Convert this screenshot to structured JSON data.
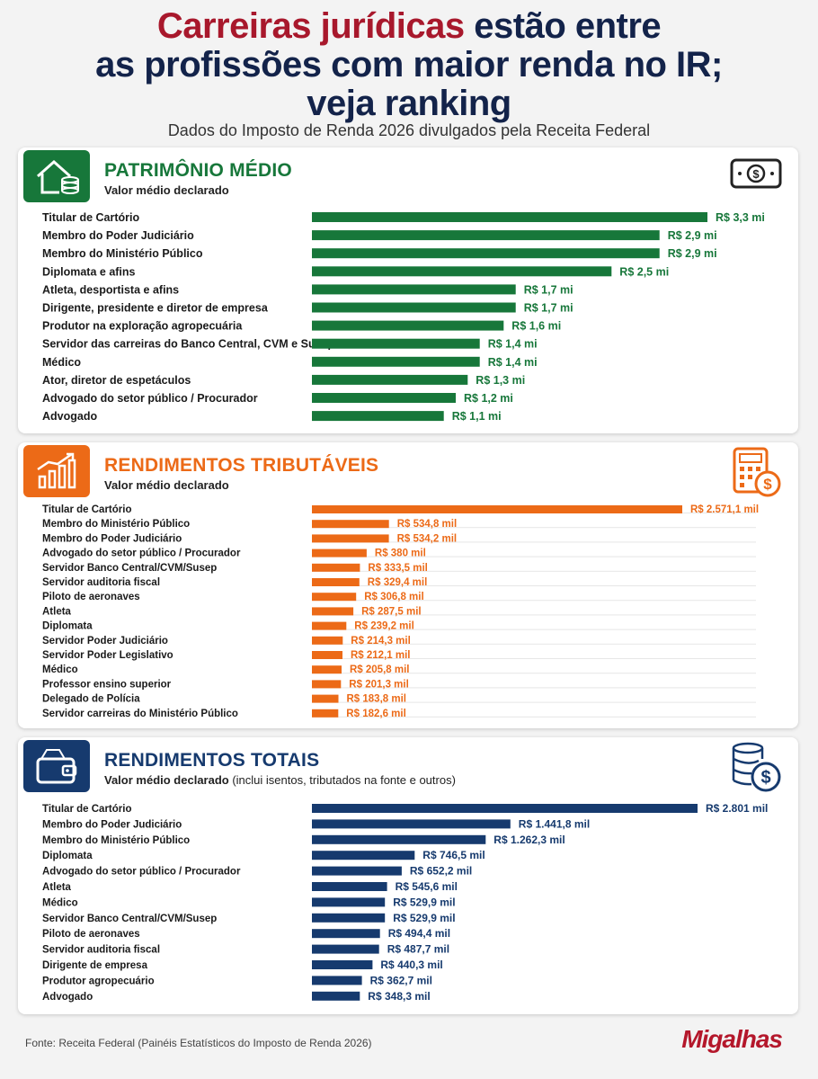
{
  "header": {
    "title_accent": "Carreiras jurídicas",
    "title_rest_1": " estão entre",
    "title_line2": "as profissões com maior renda no IR;",
    "title_line3": "veja ranking",
    "subtitle": "Dados do Imposto de Renda 2026 divulgados pela Receita Federal"
  },
  "colors": {
    "patrimonio": "#17773a",
    "tributaveis": "#ec6a17",
    "totais": "#163a6e",
    "accent_red": "#a8182c"
  },
  "panels": {
    "patrimonio": {
      "title": "PATRIMÔNIO MÉDIO",
      "subtitle": "Valor médio declarado",
      "icon": "house-coins-icon",
      "side_icon": "banknote-icon"
    },
    "tributaveis": {
      "title": "RENDIMENTOS TRIBUTÁVEIS",
      "subtitle": "Valor médio declarado",
      "icon": "growth-chart-icon",
      "side_icon": "calculator-icon"
    },
    "totais": {
      "title": "RENDIMENTOS TOTAIS",
      "subtitle": "Valor médio declarado",
      "subtitle_note": " (inclui isentos, tributados na fonte e outros)",
      "icon": "wallet-icon",
      "side_icon": "coin-stack-icon"
    }
  },
  "chart_data": [
    {
      "type": "bar",
      "orientation": "horizontal",
      "title": "PATRIMÔNIO MÉDIO",
      "unit": "R$ milhões",
      "categories": [
        "Titular de Cartório",
        "Membro do Poder Judiciário",
        "Membro do Ministério Público",
        "Diplomata e afins",
        "Atleta, desportista e afins",
        "Dirigente, presidente e diretor de empresa",
        "Produtor na exploração agropecuária",
        "Servidor das carreiras do Banco Central, CVM e Susep",
        "Médico",
        "Ator, diretor de espetáculos",
        "Advogado do setor público / Procurador",
        "Advogado"
      ],
      "values": [
        3.3,
        2.9,
        2.9,
        2.5,
        1.7,
        1.7,
        1.6,
        1.4,
        1.4,
        1.3,
        1.2,
        1.1
      ],
      "labels": [
        "R$ 3,3 mi",
        "R$ 2,9 mi",
        "R$ 2,9 mi",
        "R$ 2,5 mi",
        "R$ 1,7 mi",
        "R$ 1,7 mi",
        "R$ 1,6 mi",
        "R$ 1,4 mi",
        "R$ 1,4 mi",
        "R$ 1,3 mi",
        "R$ 1,2 mi",
        "R$ 1,1 mi"
      ],
      "xlim": [
        0,
        3.3
      ]
    },
    {
      "type": "bar",
      "orientation": "horizontal",
      "title": "RENDIMENTOS TRIBUTÁVEIS",
      "unit": "R$ mil",
      "categories": [
        "Titular de Cartório",
        "Membro do Ministério Público",
        "Membro do Poder Judiciário",
        "Advogado do setor público / Procurador",
        "Servidor Banco Central/CVM/Susep",
        "Servidor auditoria fiscal",
        "Piloto de aeronaves",
        "Atleta",
        "Diplomata",
        "Servidor Poder Judiciário",
        "Servidor Poder Legislativo",
        "Médico",
        "Professor ensino superior",
        "Delegado de Polícia",
        "Servidor carreiras do Ministério Público"
      ],
      "values": [
        2571.1,
        534.8,
        534.2,
        380,
        333.5,
        329.4,
        306.8,
        287.5,
        239.2,
        214.3,
        212.1,
        205.8,
        201.3,
        183.8,
        182.6
      ],
      "labels": [
        "R$ 2.571,1 mil",
        "R$ 534,8 mil",
        "R$ 534,2 mil",
        "R$ 380 mil",
        "R$ 333,5 mil",
        "R$ 329,4 mil",
        "R$ 306,8 mil",
        "R$ 287,5 mil",
        "R$ 239,2 mil",
        "R$ 214,3 mil",
        "R$ 212,1 mil",
        "R$ 205,8 mil",
        "R$ 201,3 mil",
        "R$ 183,8 mil",
        "R$ 182,6 mil"
      ],
      "xlim": [
        0,
        2571.1
      ]
    },
    {
      "type": "bar",
      "orientation": "horizontal",
      "title": "RENDIMENTOS TOTAIS",
      "unit": "R$ mil",
      "categories": [
        "Titular de Cartório",
        "Membro do Poder Judiciário",
        "Membro do Ministério Público",
        "Diplomata",
        "Advogado do setor público / Procurador",
        "Atleta",
        "Médico",
        "Servidor Banco Central/CVM/Susep",
        "Piloto de aeronaves",
        "Servidor auditoria fiscal",
        "Dirigente de empresa",
        "Produtor agropecuário",
        "Advogado"
      ],
      "values": [
        2801,
        1441.8,
        1262.3,
        746.5,
        652.2,
        545.6,
        529.9,
        529.9,
        494.4,
        487.7,
        440.3,
        362.7,
        348.3
      ],
      "labels": [
        "R$ 2.801 mil",
        "R$ 1.441,8 mil",
        "R$ 1.262,3 mil",
        "R$ 746,5 mil",
        "R$ 652,2 mil",
        "R$ 545,6 mil",
        "R$ 529,9 mil",
        "R$ 529,9 mil",
        "R$ 494,4 mil",
        "R$ 487,7 mil",
        "R$ 440,3 mil",
        "R$ 362,7 mil",
        "R$ 348,3 mil"
      ],
      "xlim": [
        0,
        2801
      ]
    }
  ],
  "footer": {
    "source": "Fonte: Receita Federal (Painéis Estatísticos do Imposto de Renda 2026)",
    "logo": "Migalhas"
  }
}
